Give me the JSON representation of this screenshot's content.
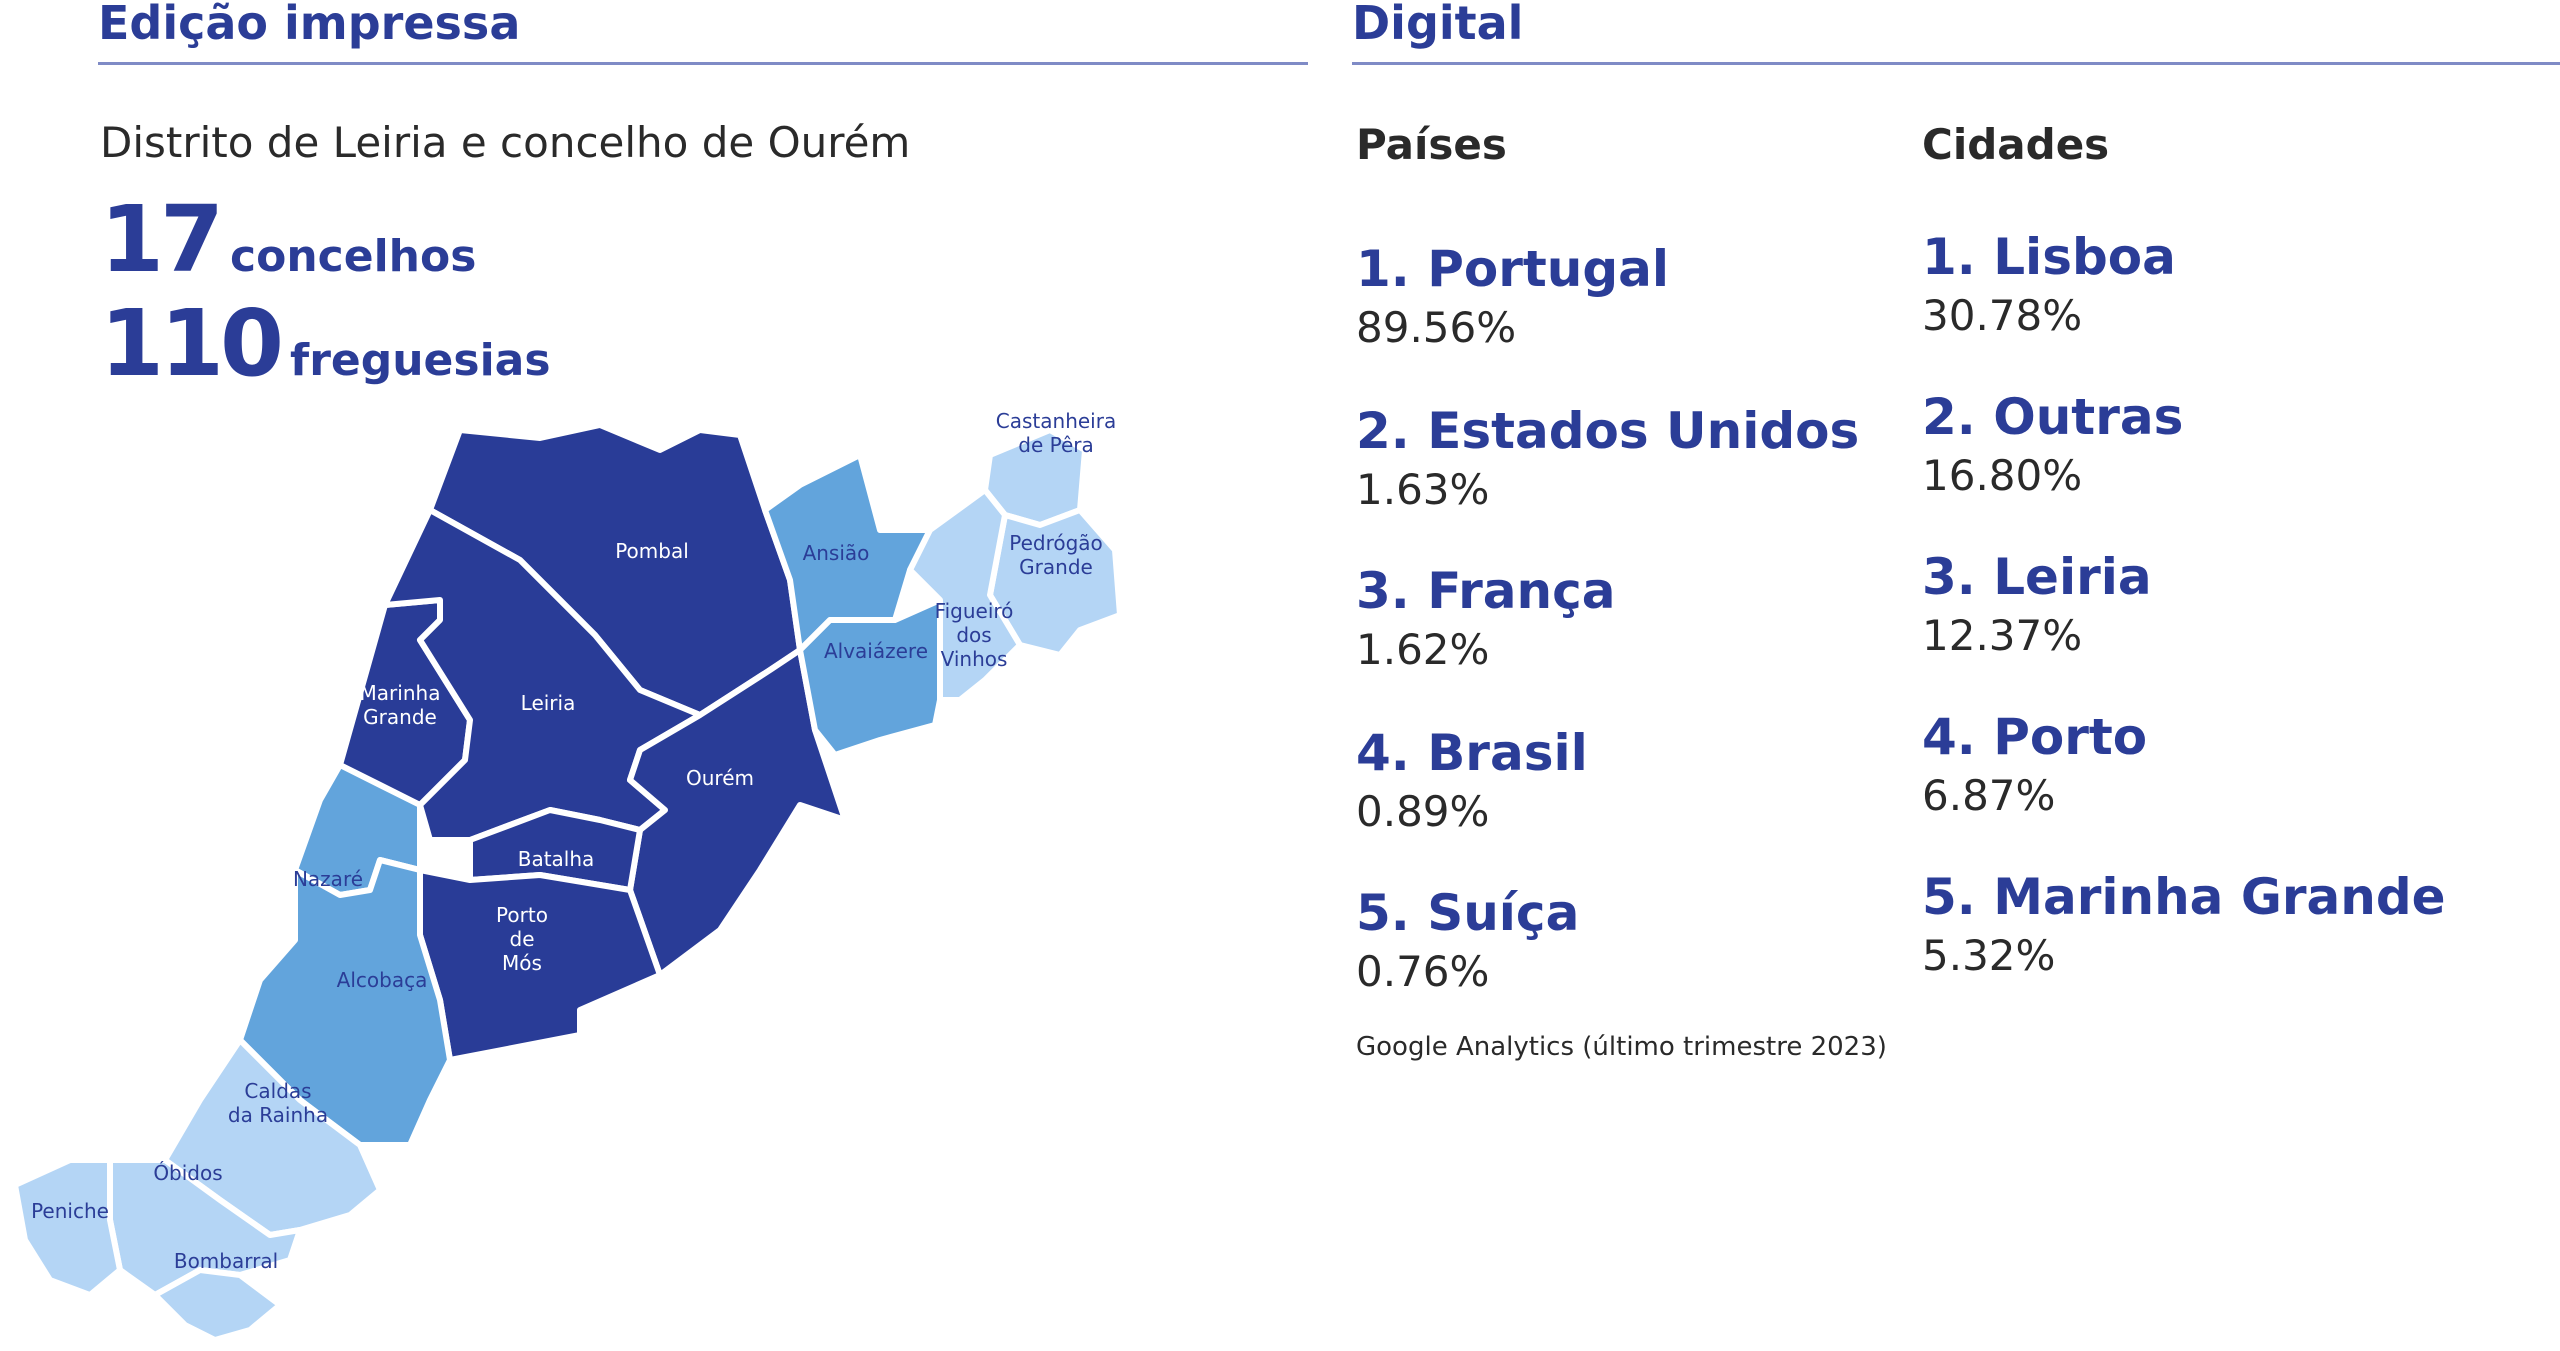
{
  "print": {
    "title": "Edição impressa",
    "subtitle": "Distrito de Leiria e concelho de Ourém",
    "stats": [
      {
        "number": "17",
        "unit": "concelhos"
      },
      {
        "number": "110",
        "unit": "freguesias"
      }
    ]
  },
  "map": {
    "colors": {
      "dark": "#293c97",
      "mid": "#62a4dc",
      "light": "#b4d5f5",
      "border": "#ffffff"
    },
    "regions": [
      {
        "id": "pombal",
        "label": "Pombal",
        "shade": "dark"
      },
      {
        "id": "leiria",
        "label": "Leiria",
        "shade": "dark"
      },
      {
        "id": "marinha-grande",
        "label": "Marinha\nGrande",
        "shade": "dark"
      },
      {
        "id": "ourem",
        "label": "Ourém",
        "shade": "dark"
      },
      {
        "id": "batalha",
        "label": "Batalha",
        "shade": "dark"
      },
      {
        "id": "porto-de-mos",
        "label": "Porto\nde\nMós",
        "shade": "dark"
      },
      {
        "id": "ansiao",
        "label": "Ansião",
        "shade": "mid"
      },
      {
        "id": "alvaiazere",
        "label": "Alvaiázere",
        "shade": "mid"
      },
      {
        "id": "nazare",
        "label": "Nazaré",
        "shade": "mid"
      },
      {
        "id": "alcobaca",
        "label": "Alcobaça",
        "shade": "mid"
      },
      {
        "id": "castanheira-de-pera",
        "label": "Castanheira\nde Pêra",
        "shade": "light"
      },
      {
        "id": "pedrogao-grande",
        "label": "Pedrógão\nGrande",
        "shade": "light"
      },
      {
        "id": "figueiro-dos-vinhos",
        "label": "Figueiró\ndos\nVinhos",
        "shade": "light"
      },
      {
        "id": "caldas-da-rainha",
        "label": "Caldas\nda Rainha",
        "shade": "light"
      },
      {
        "id": "obidos",
        "label": "Óbidos",
        "shade": "light"
      },
      {
        "id": "peniche",
        "label": "Peniche",
        "shade": "light"
      },
      {
        "id": "bombarral",
        "label": "Bombarral",
        "shade": "light"
      }
    ]
  },
  "digital": {
    "title": "Digital",
    "countries_heading": "Países",
    "cities_heading": "Cidades",
    "countries": [
      {
        "name": "1. Portugal",
        "value": "89.56%"
      },
      {
        "name": "2. Estados Unidos",
        "value": "1.63%"
      },
      {
        "name": "3. França",
        "value": "1.62%"
      },
      {
        "name": "4. Brasil",
        "value": "0.89%"
      },
      {
        "name": "5. Suíça",
        "value": "0.76%"
      }
    ],
    "cities": [
      {
        "name": "1. Lisboa",
        "value": "30.78%"
      },
      {
        "name": "2. Outras",
        "value": "16.80%"
      },
      {
        "name": "3. Leiria",
        "value": "12.37%"
      },
      {
        "name": "4. Porto",
        "value": "6.87%"
      },
      {
        "name": "5. Marinha Grande",
        "value": "5.32%"
      }
    ],
    "source": "Google Analytics (último trimestre 2023)"
  }
}
